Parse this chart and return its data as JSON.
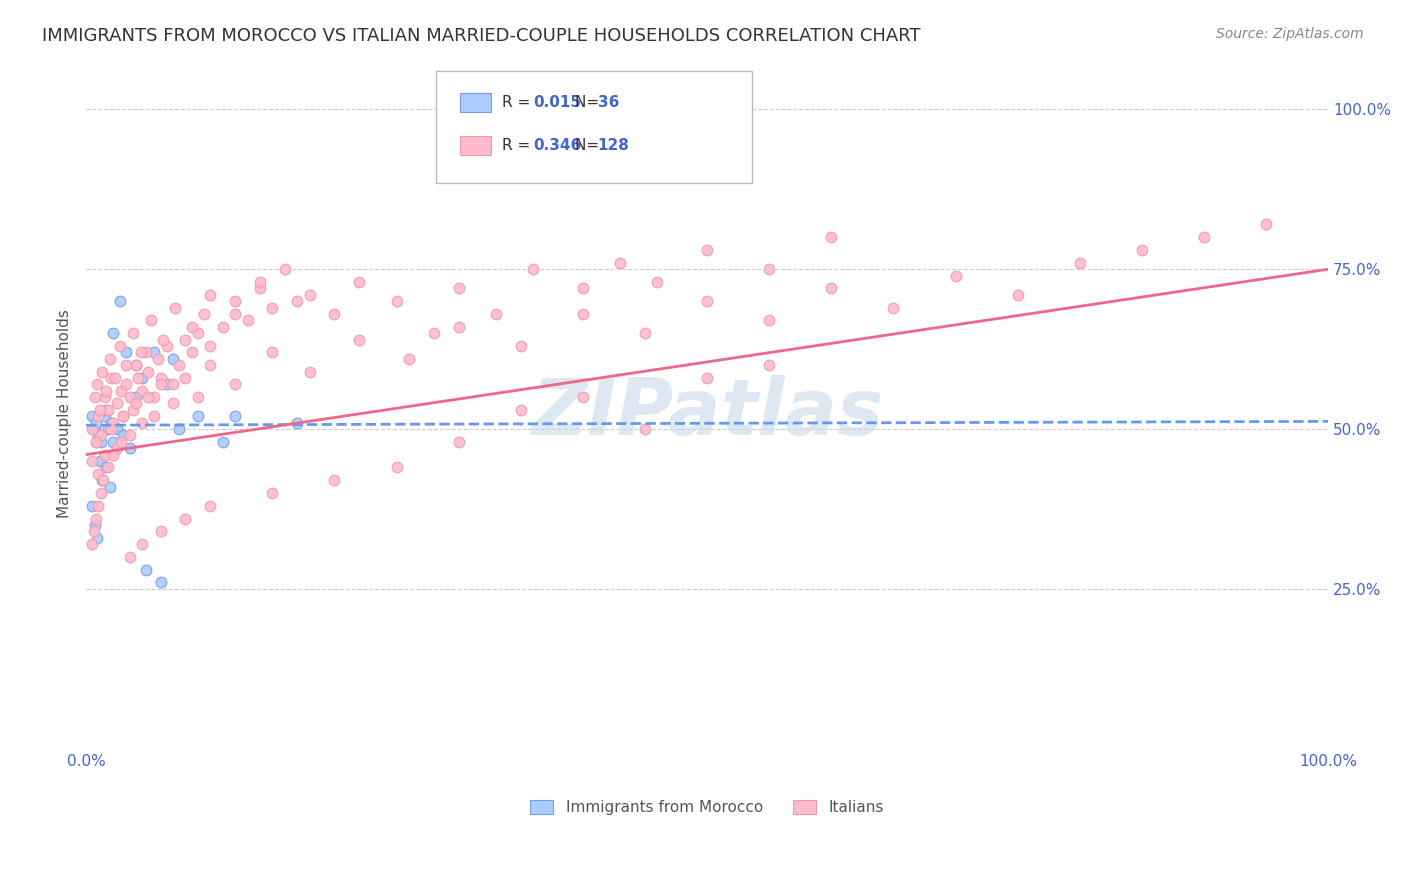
{
  "title": "IMMIGRANTS FROM MOROCCO VS ITALIAN MARRIED-COUPLE HOUSEHOLDS CORRELATION CHART",
  "source": "Source: ZipAtlas.com",
  "ylabel": "Married-couple Households",
  "xlim": [
    0,
    1
  ],
  "ylim": [
    0,
    1.05
  ],
  "ytick_positions": [
    0.25,
    0.5,
    0.75,
    1.0
  ],
  "ytick_labels": [
    "25.0%",
    "50.0%",
    "75.0%",
    "100.0%"
  ],
  "legend_entries": [
    {
      "label": "Immigrants from Morocco",
      "R": "0.015",
      "N": "36"
    },
    {
      "label": "Italians",
      "R": "0.346",
      "N": "128"
    }
  ],
  "blue_scatter_x": [
    0.005,
    0.007,
    0.008,
    0.01,
    0.012,
    0.015,
    0.016,
    0.018,
    0.02,
    0.022,
    0.025,
    0.03,
    0.035,
    0.04,
    0.045,
    0.055,
    0.065,
    0.07,
    0.12,
    0.17,
    0.005,
    0.007,
    0.009,
    0.011,
    0.013,
    0.016,
    0.019,
    0.022,
    0.027,
    0.032,
    0.04,
    0.048,
    0.06,
    0.075,
    0.09,
    0.11
  ],
  "blue_scatter_y": [
    0.52,
    0.5,
    0.51,
    0.49,
    0.48,
    0.52,
    0.53,
    0.5,
    0.51,
    0.48,
    0.5,
    0.49,
    0.47,
    0.6,
    0.58,
    0.62,
    0.57,
    0.61,
    0.52,
    0.51,
    0.38,
    0.35,
    0.33,
    0.45,
    0.42,
    0.44,
    0.41,
    0.65,
    0.7,
    0.62,
    0.55,
    0.28,
    0.26,
    0.5,
    0.52,
    0.48
  ],
  "pink_scatter_x": [
    0.005,
    0.008,
    0.01,
    0.012,
    0.015,
    0.018,
    0.02,
    0.022,
    0.025,
    0.028,
    0.03,
    0.032,
    0.035,
    0.038,
    0.04,
    0.042,
    0.045,
    0.048,
    0.05,
    0.055,
    0.058,
    0.06,
    0.065,
    0.07,
    0.075,
    0.08,
    0.085,
    0.09,
    0.095,
    0.1,
    0.11,
    0.12,
    0.13,
    0.14,
    0.15,
    0.16,
    0.18,
    0.2,
    0.22,
    0.25,
    0.28,
    0.3,
    0.33,
    0.36,
    0.4,
    0.43,
    0.46,
    0.5,
    0.55,
    0.6,
    0.005,
    0.008,
    0.01,
    0.015,
    0.02,
    0.025,
    0.03,
    0.035,
    0.04,
    0.045,
    0.05,
    0.055,
    0.06,
    0.07,
    0.08,
    0.09,
    0.1,
    0.12,
    0.15,
    0.18,
    0.22,
    0.26,
    0.3,
    0.35,
    0.4,
    0.45,
    0.5,
    0.55,
    0.6,
    0.65,
    0.7,
    0.75,
    0.8,
    0.85,
    0.9,
    0.95,
    0.4,
    0.5,
    0.55,
    0.45,
    0.35,
    0.3,
    0.25,
    0.2,
    0.15,
    0.1,
    0.08,
    0.06,
    0.045,
    0.035,
    0.028,
    0.022,
    0.018,
    0.014,
    0.012,
    0.01,
    0.008,
    0.006,
    0.005,
    0.007,
    0.009,
    0.011,
    0.013,
    0.016,
    0.019,
    0.023,
    0.027,
    0.032,
    0.038,
    0.044,
    0.052,
    0.062,
    0.072,
    0.085,
    0.1,
    0.12,
    0.14,
    0.17
  ],
  "pink_scatter_y": [
    0.5,
    0.48,
    0.52,
    0.49,
    0.55,
    0.53,
    0.58,
    0.51,
    0.54,
    0.56,
    0.52,
    0.57,
    0.55,
    0.53,
    0.6,
    0.58,
    0.56,
    0.62,
    0.59,
    0.55,
    0.61,
    0.58,
    0.63,
    0.57,
    0.6,
    0.64,
    0.62,
    0.65,
    0.68,
    0.63,
    0.66,
    0.7,
    0.67,
    0.72,
    0.69,
    0.75,
    0.71,
    0.68,
    0.73,
    0.7,
    0.65,
    0.72,
    0.68,
    0.75,
    0.72,
    0.76,
    0.73,
    0.78,
    0.75,
    0.8,
    0.45,
    0.48,
    0.43,
    0.46,
    0.5,
    0.47,
    0.52,
    0.49,
    0.54,
    0.51,
    0.55,
    0.52,
    0.57,
    0.54,
    0.58,
    0.55,
    0.6,
    0.57,
    0.62,
    0.59,
    0.64,
    0.61,
    0.66,
    0.63,
    0.68,
    0.65,
    0.7,
    0.67,
    0.72,
    0.69,
    0.74,
    0.71,
    0.76,
    0.78,
    0.8,
    0.82,
    0.55,
    0.58,
    0.6,
    0.5,
    0.53,
    0.48,
    0.44,
    0.42,
    0.4,
    0.38,
    0.36,
    0.34,
    0.32,
    0.3,
    0.48,
    0.46,
    0.44,
    0.42,
    0.4,
    0.38,
    0.36,
    0.34,
    0.32,
    0.55,
    0.57,
    0.53,
    0.59,
    0.56,
    0.61,
    0.58,
    0.63,
    0.6,
    0.65,
    0.62,
    0.67,
    0.64,
    0.69,
    0.66,
    0.71,
    0.68,
    0.73,
    0.7
  ],
  "blue_trend_x": [
    0.0,
    1.0
  ],
  "blue_trend_y": [
    0.506,
    0.512
  ],
  "pink_trend_x": [
    0.0,
    1.0
  ],
  "pink_trend_y": [
    0.46,
    0.75
  ],
  "grid_color": "#cccccc",
  "background_color": "#ffffff",
  "title_color": "#333333",
  "axis_color": "#4466cc",
  "watermark": "ZIPatlas",
  "watermark_color": "#c8daea",
  "scatter_size": 60,
  "blue_color": "#aaccff",
  "blue_edge": "#7799ee",
  "pink_color": "#ffbbcc",
  "pink_edge": "#ee99aa",
  "blue_line_color": "#6699ee",
  "pink_line_color": "#ee6688"
}
